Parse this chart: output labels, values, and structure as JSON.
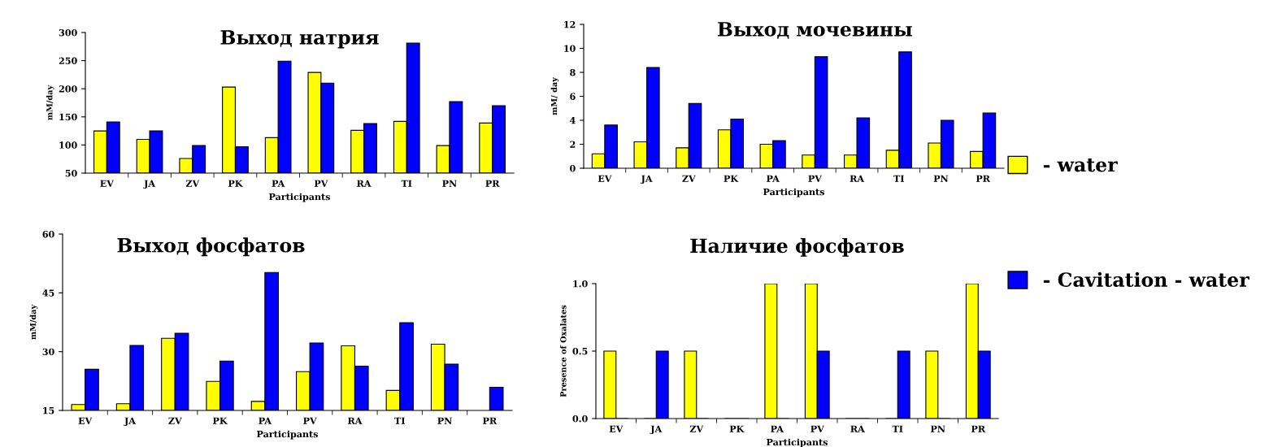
{
  "chart_data": [
    {
      "type": "bar",
      "title": "Выход натрия",
      "xlabel": "Participants",
      "ylabel": "mM/day",
      "categories": [
        "EV",
        "JA",
        "ZV",
        "PK",
        "PA",
        "PV",
        "RA",
        "TI",
        "PN",
        "PR"
      ],
      "ylim": [
        50,
        300
      ],
      "yticks": [
        50,
        100,
        150,
        200,
        250,
        300
      ],
      "legend": "right",
      "series": [
        {
          "name": "- water",
          "color": "#ffff00",
          "values": [
            125,
            110,
            76,
            203,
            113,
            229,
            126,
            142,
            99,
            139
          ]
        },
        {
          "name": "- Cavitation - water",
          "color": "#0000ff",
          "values": [
            141,
            125,
            99,
            97,
            249,
            210,
            138,
            281,
            177,
            170
          ]
        }
      ]
    },
    {
      "type": "bar",
      "title": "Выход мочевины",
      "xlabel": "Participants",
      "ylabel": "mM/ day",
      "categories": [
        "EV",
        "JA",
        "ZV",
        "PK",
        "PA",
        "PV",
        "RA",
        "TI",
        "PN",
        "PR"
      ],
      "ylim": [
        0,
        12
      ],
      "yticks": [
        0,
        2,
        4,
        6,
        8,
        10,
        12
      ],
      "series": [
        {
          "color": "#ffff00",
          "values": [
            1.2,
            2.2,
            1.7,
            3.2,
            2.0,
            1.1,
            1.1,
            1.5,
            2.1,
            1.4
          ]
        },
        {
          "color": "#0000ff",
          "values": [
            3.6,
            8.4,
            5.4,
            4.1,
            2.3,
            9.3,
            4.2,
            9.7,
            4.0,
            4.6
          ]
        }
      ]
    },
    {
      "type": "bar",
      "title": "Выход фосфатов",
      "xlabel": "Participants",
      "ylabel": "mM/day",
      "categories": [
        "EV",
        "JA",
        "ZV",
        "PK",
        "PA",
        "PV",
        "RA",
        "TI",
        "PN",
        "PR"
      ],
      "ylim": [
        15,
        60
      ],
      "yticks": [
        15,
        30,
        45,
        60
      ],
      "series": [
        {
          "color": "#ffff00",
          "values": [
            16.5,
            16.7,
            33.4,
            22.4,
            17.3,
            24.9,
            31.5,
            20.1,
            31.9,
            null
          ]
        },
        {
          "color": "#0000ff",
          "values": [
            25.5,
            31.6,
            34.7,
            27.6,
            50.2,
            32.2,
            26.3,
            37.4,
            26.8,
            20.9
          ]
        }
      ]
    },
    {
      "type": "bar",
      "title": "Наличие фосфатов",
      "xlabel": "Participants",
      "ylabel": "Presence of Oxalates",
      "categories": [
        "EV",
        "JA",
        "ZV",
        "PK",
        "PA",
        "PV",
        "RA",
        "TI",
        "PN",
        "PR"
      ],
      "ylim": [
        0,
        1
      ],
      "yticks": [
        {
          "value": 0,
          "label": "0.0"
        },
        0.5,
        {
          "value": 1,
          "label": "1.0"
        }
      ],
      "series": [
        {
          "color": "#ffff00",
          "values": [
            0.5,
            0,
            0.5,
            0,
            1,
            1,
            0,
            0,
            0.5,
            1
          ]
        },
        {
          "color": "#0000ff",
          "values": [
            0,
            0.5,
            0,
            0,
            0,
            0.5,
            0,
            0.5,
            0,
            0.5
          ]
        }
      ]
    }
  ]
}
